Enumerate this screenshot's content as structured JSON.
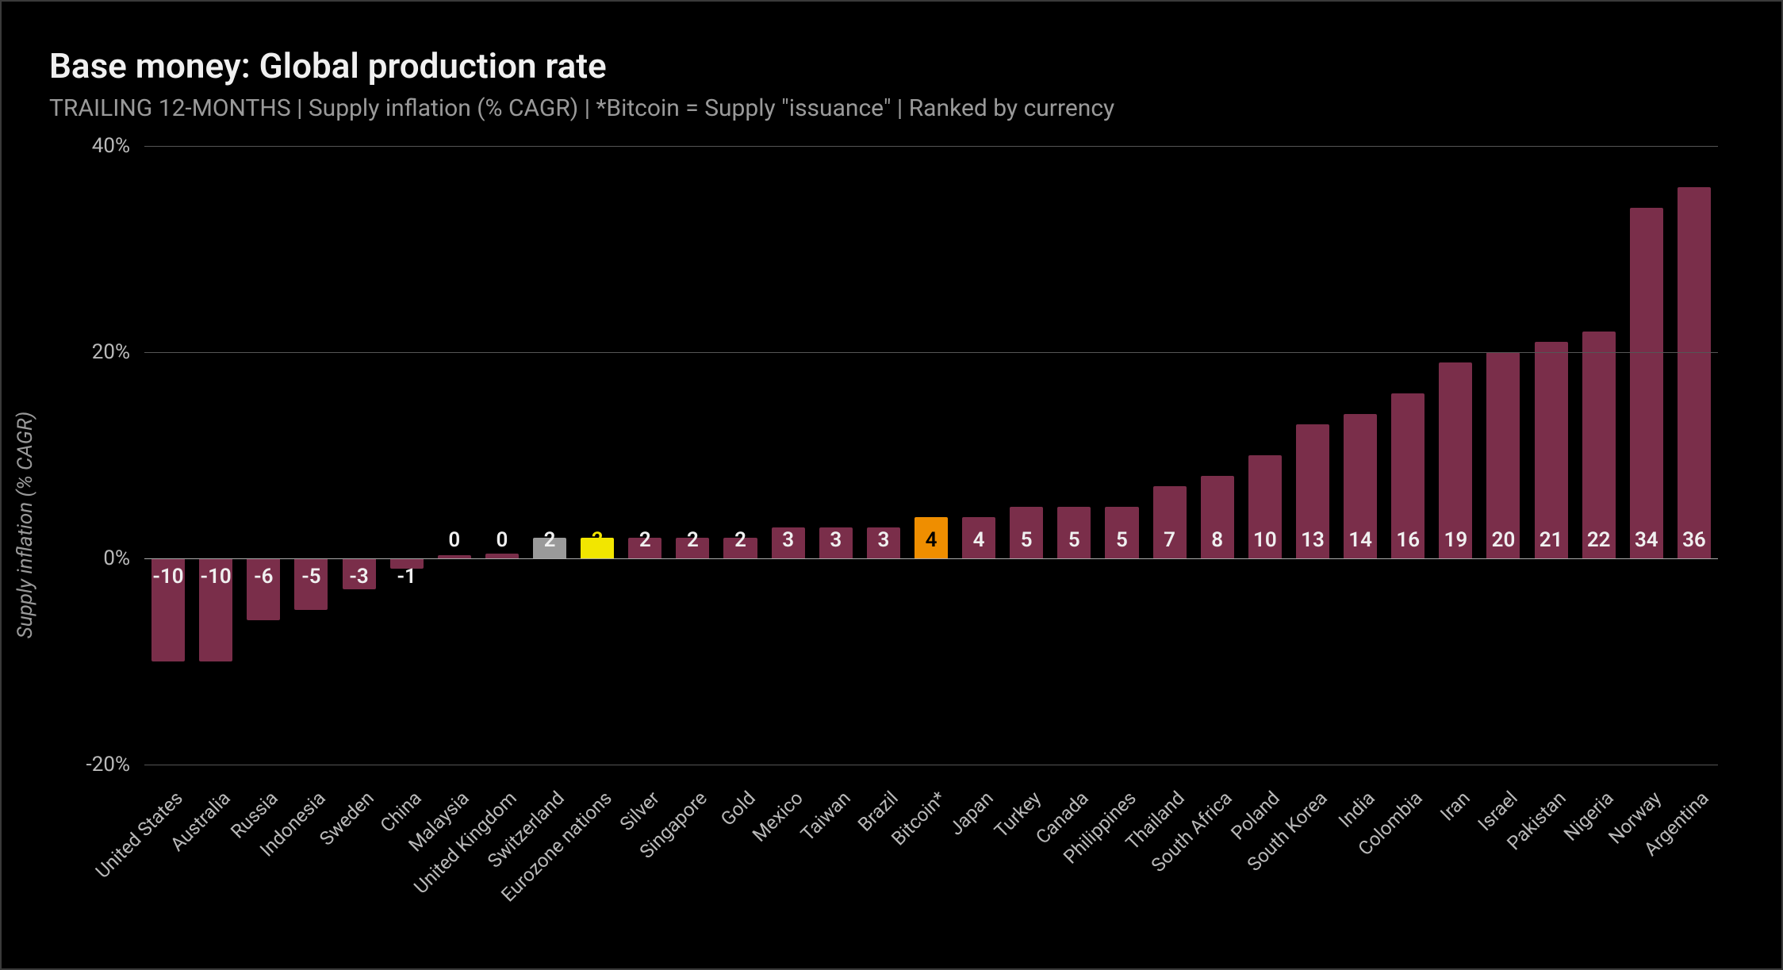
{
  "chart": {
    "type": "bar",
    "title": "Base money: Global production rate",
    "subtitle": "TRAILING 12-MONTHS | Supply inflation (% CAGR) | *Bitcoin = Supply \"issuance\" | Ranked by currency",
    "ylabel": "Supply inflation (% CAGR)",
    "background_color": "#000000",
    "border_color": "#3a3a3a",
    "grid_color": "#555555",
    "zero_line_color": "#aaaaaa",
    "title_color": "#f0f0f0",
    "subtitle_color": "#9a9a9a",
    "axis_text_color": "#bababa",
    "bar_label_color": "#f0f0f0",
    "title_fontsize": 44,
    "subtitle_fontsize": 30,
    "axis_label_fontsize": 26,
    "tick_fontsize": 26,
    "bar_label_fontsize": 26,
    "category_fontsize": 24,
    "ylim": [
      -20,
      40
    ],
    "yticks": [
      -20,
      0,
      20,
      40
    ],
    "ytick_labels": [
      "-20%",
      "0%",
      "20%",
      "40%"
    ],
    "bar_width_ratio": 0.7,
    "default_bar_color": "#7a2e4a",
    "categories": [
      "United States",
      "Australia",
      "Russia",
      "Indonesia",
      "Sweden",
      "China",
      "Malaysia",
      "United Kingdom",
      "Switzerland",
      "Eurozone nations",
      "Silver",
      "Singapore",
      "Gold",
      "Mexico",
      "Taiwan",
      "Brazil",
      "Bitcoin*",
      "Japan",
      "Turkey",
      "Canada",
      "Philippines",
      "Thailand",
      "South Africa",
      "Poland",
      "South Korea",
      "India",
      "Colombia",
      "Iran",
      "Israel",
      "Pakistan",
      "Nigeria",
      "Norway",
      "Argentina"
    ],
    "values": [
      -10,
      -10,
      -6,
      -5,
      -3,
      -1,
      0,
      0,
      2,
      2,
      2,
      2,
      2,
      3,
      3,
      3,
      4,
      4,
      5,
      5,
      5,
      7,
      8,
      10,
      13,
      14,
      16,
      19,
      20,
      21,
      22,
      34,
      36
    ],
    "bar_colors": [
      "#7a2e4a",
      "#7a2e4a",
      "#7a2e4a",
      "#7a2e4a",
      "#7a2e4a",
      "#7a2e4a",
      "#7a2e4a",
      "#7a2e4a",
      "#9a9a9a",
      "#f2e600",
      "#7a2e4a",
      "#7a2e4a",
      "#7a2e4a",
      "#7a2e4a",
      "#7a2e4a",
      "#7a2e4a",
      "#ef8e00",
      "#7a2e4a",
      "#7a2e4a",
      "#7a2e4a",
      "#7a2e4a",
      "#7a2e4a",
      "#7a2e4a",
      "#7a2e4a",
      "#7a2e4a",
      "#7a2e4a",
      "#7a2e4a",
      "#7a2e4a",
      "#7a2e4a",
      "#7a2e4a",
      "#7a2e4a",
      "#7a2e4a",
      "#7a2e4a"
    ],
    "label_text_overrides": {
      "9": {
        "color": "#f2e600"
      },
      "16": {
        "color": "#000000"
      }
    },
    "small_bar_values": {
      "6": 0.3,
      "7": 0.5
    }
  }
}
